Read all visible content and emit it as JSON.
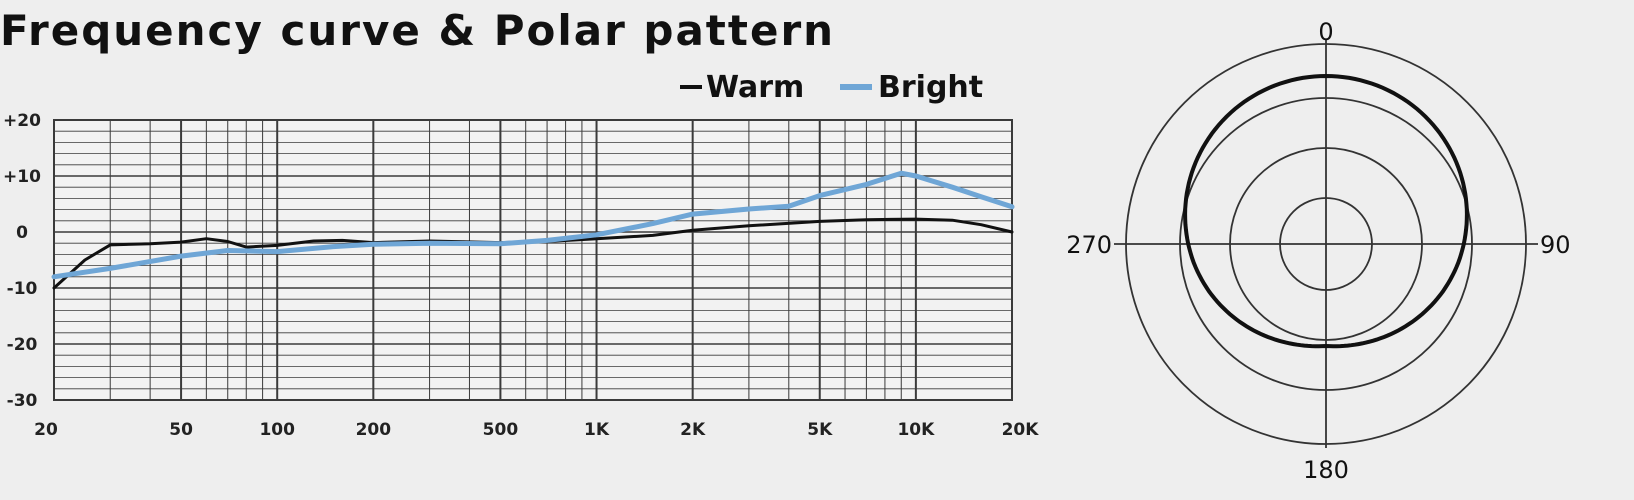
{
  "title": "Frequency curve & Polar pattern",
  "colors": {
    "background": "#eeeeee",
    "grid": "#3a3a3a",
    "warm": "#111111",
    "bright": "#6fa6d6"
  },
  "chart_data": [
    {
      "type": "line",
      "xscale": "log",
      "xlim": [
        20,
        20000
      ],
      "ylim": [
        -30,
        20
      ],
      "x_tick_values": [
        20,
        50,
        100,
        200,
        500,
        1000,
        2000,
        5000,
        10000,
        20000
      ],
      "x_tick_labels": [
        "20",
        "50",
        "100",
        "200",
        "500",
        "1K",
        "2K",
        "5K",
        "10K",
        "20K"
      ],
      "y_tick_values": [
        20,
        10,
        0,
        -10,
        -20,
        -30
      ],
      "y_tick_labels": [
        "+20",
        "+10",
        "0",
        "-10",
        "-20",
        "-30"
      ],
      "grid": true,
      "legend": "top-right",
      "series": [
        {
          "name": "Warm",
          "color": "#111111",
          "x": [
            20,
            25,
            30,
            40,
            50,
            60,
            70,
            80,
            100,
            130,
            160,
            200,
            300,
            500,
            700,
            1000,
            1500,
            2000,
            3000,
            5000,
            7000,
            10000,
            13000,
            16000,
            20000
          ],
          "y": [
            -10,
            -5,
            -2.3,
            -2.1,
            -1.8,
            -1.2,
            -1.7,
            -2.7,
            -2.4,
            -1.6,
            -1.5,
            -1.9,
            -1.6,
            -1.9,
            -1.7,
            -1.2,
            -0.6,
            0.3,
            1.1,
            1.9,
            2.2,
            2.3,
            2.1,
            1.3,
            0
          ]
        },
        {
          "name": "Bright",
          "color": "#6fa6d6",
          "x": [
            20,
            30,
            50,
            70,
            100,
            150,
            200,
            300,
            500,
            700,
            1000,
            1500,
            2000,
            3000,
            4000,
            5000,
            7000,
            9000,
            10000,
            13000,
            16000,
            20000
          ],
          "y": [
            -8,
            -6.5,
            -4.3,
            -3.3,
            -3.5,
            -2.6,
            -2.2,
            -2,
            -2.1,
            -1.5,
            -0.5,
            1.5,
            3.2,
            4.1,
            4.6,
            6.5,
            8.5,
            10.5,
            10,
            8,
            6.3,
            4.5
          ]
        }
      ]
    },
    {
      "type": "polar",
      "angle_labels": [
        "0",
        "90",
        "180",
        "270"
      ],
      "rings": 4,
      "series": [
        {
          "name": "",
          "pattern": "cardioid-like",
          "rear_rejection": 0.3
        }
      ]
    }
  ]
}
